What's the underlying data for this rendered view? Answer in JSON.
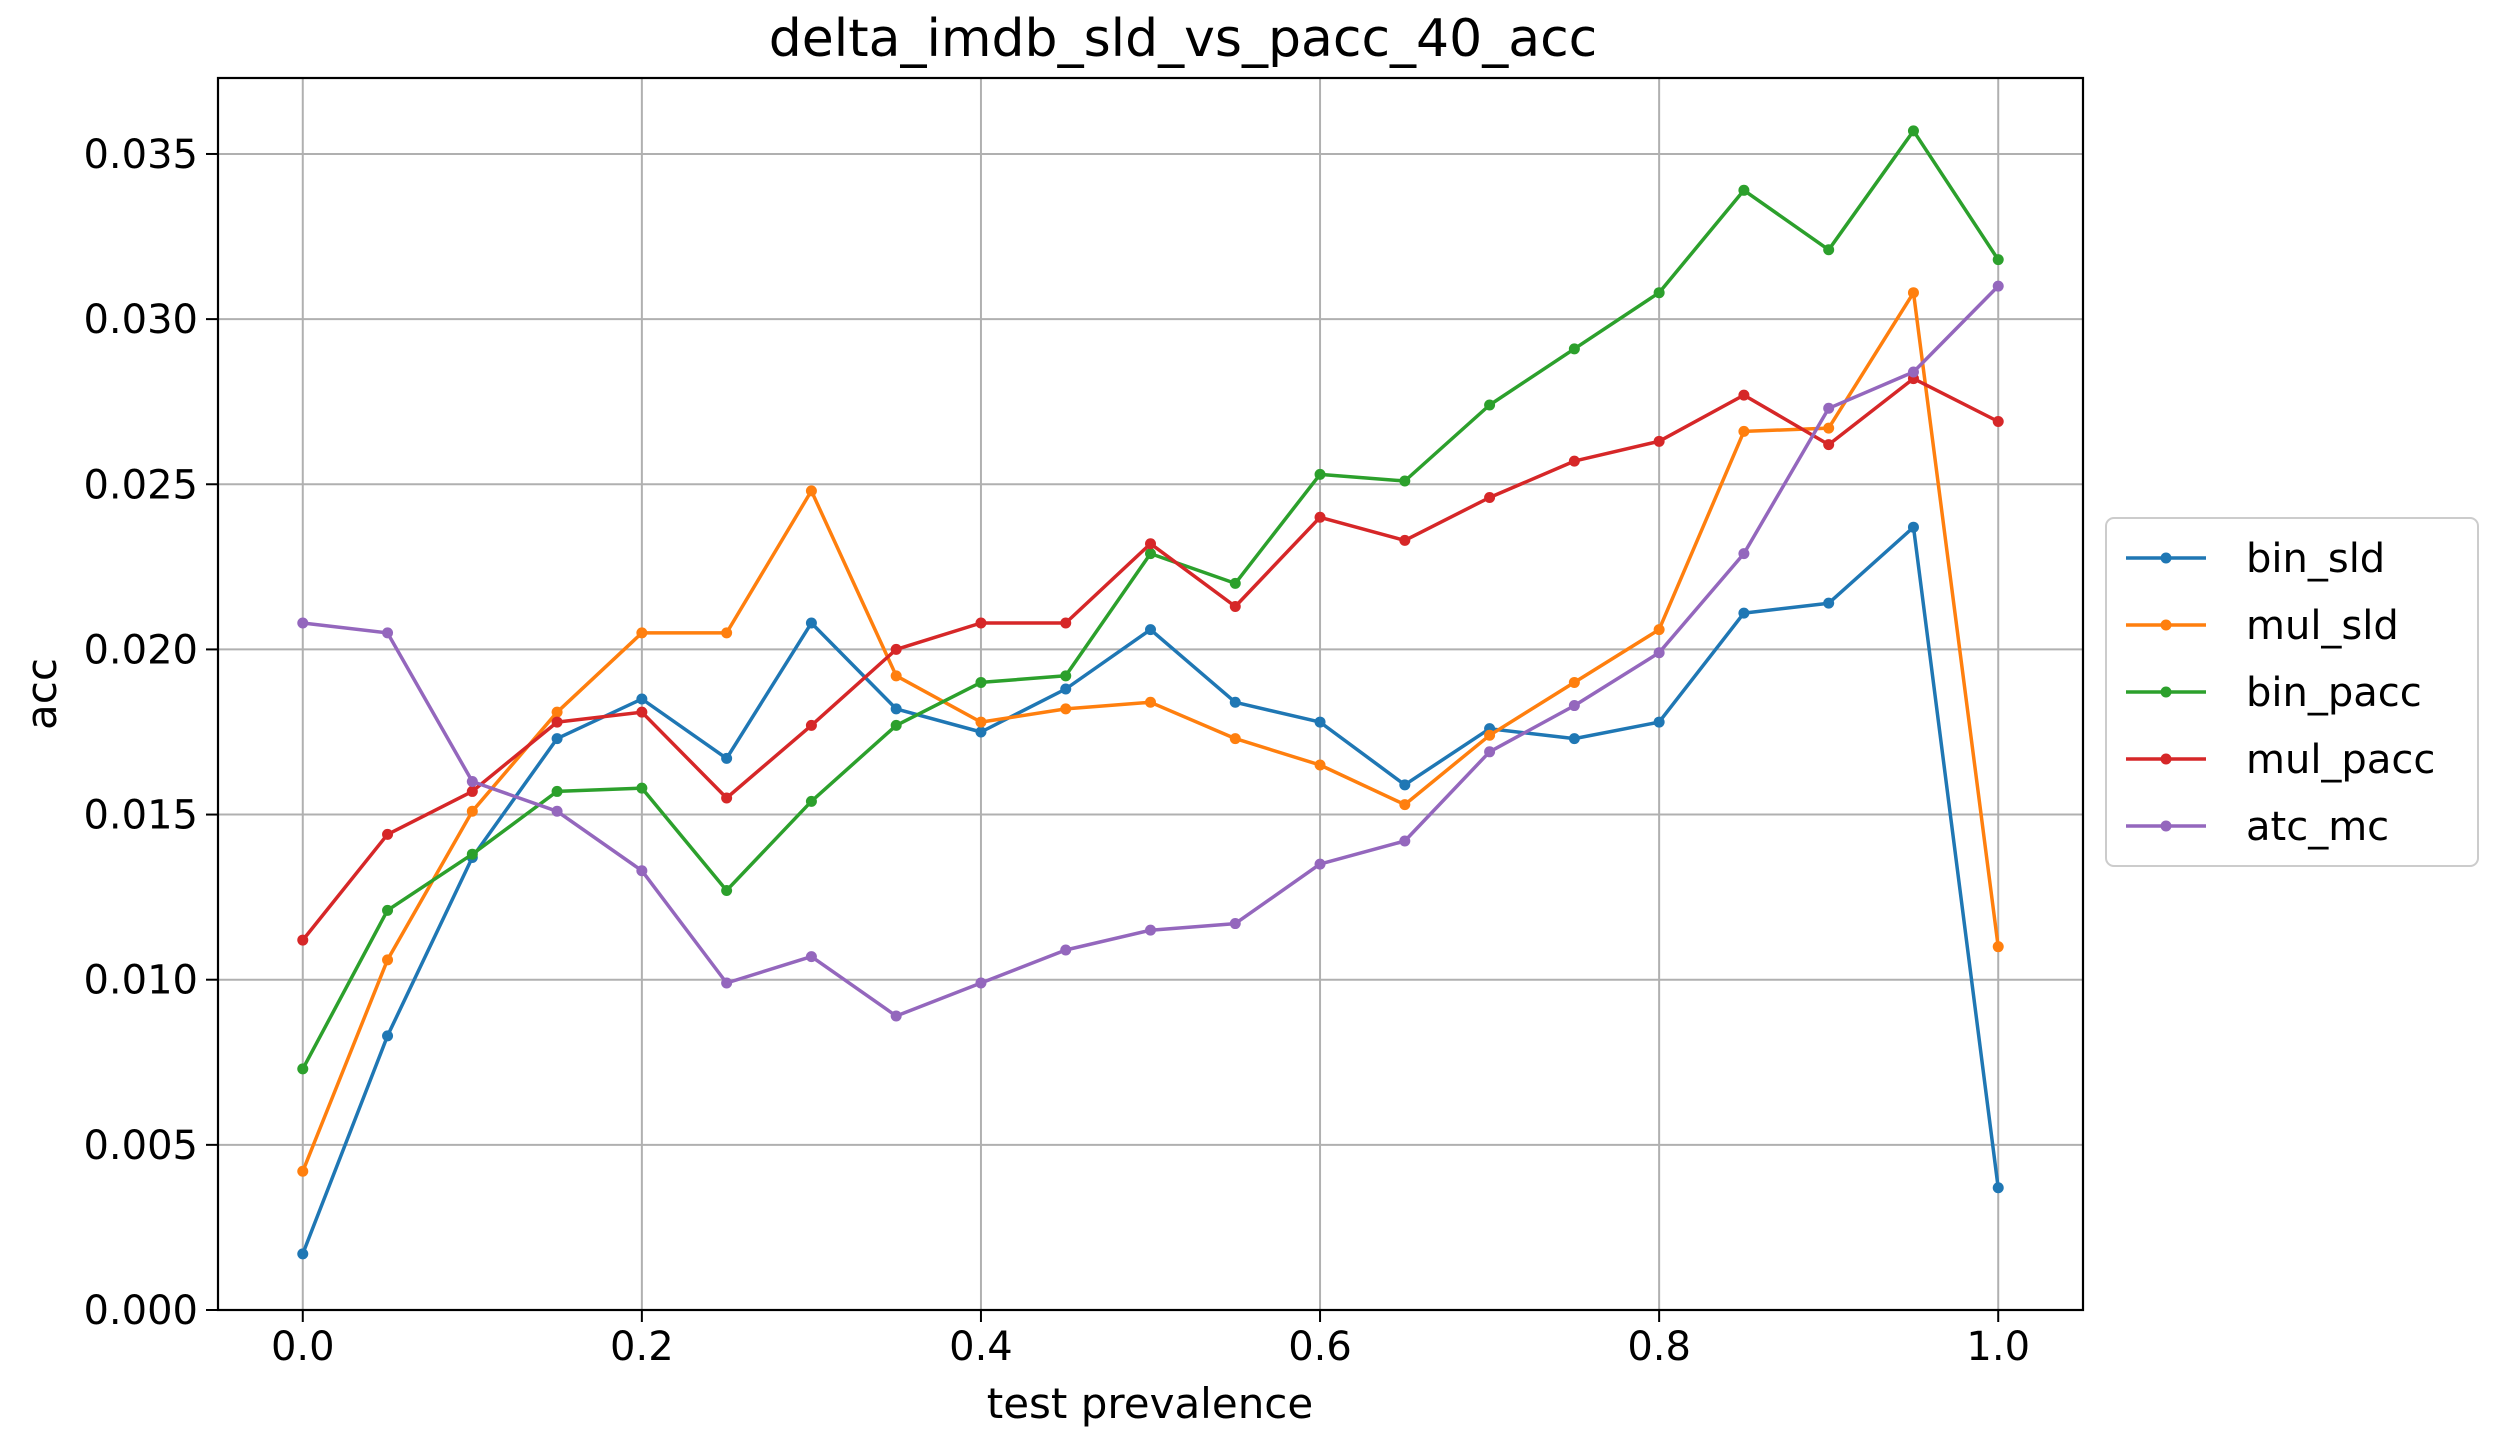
{
  "chart_data": {
    "type": "line",
    "title": "delta_imdb_sld_vs_pacc_40_acc",
    "xlabel": "test prevalence",
    "ylabel": "acc",
    "xlim": [
      -0.05,
      1.05
    ],
    "ylim": [
      0.0,
      0.0373
    ],
    "xticks": [
      0.0,
      0.2,
      0.4,
      0.6,
      0.8,
      1.0
    ],
    "xtick_labels": [
      "0.0",
      "0.2",
      "0.4",
      "0.6",
      "0.8",
      "1.0"
    ],
    "yticks": [
      0.0,
      0.005,
      0.01,
      0.015,
      0.02,
      0.025,
      0.03,
      0.035
    ],
    "ytick_labels": [
      "0.000",
      "0.005",
      "0.010",
      "0.015",
      "0.020",
      "0.025",
      "0.030",
      "0.035"
    ],
    "grid": true,
    "legend_position": "center-right outside",
    "x": [
      0.0,
      0.05,
      0.1,
      0.15,
      0.2,
      0.25,
      0.3,
      0.35,
      0.4,
      0.45,
      0.5,
      0.55,
      0.6,
      0.65,
      0.7,
      0.75,
      0.8,
      0.85,
      0.9,
      0.95,
      1.0
    ],
    "series": [
      {
        "name": "bin_sld",
        "color": "#1f77b4",
        "values": [
          0.0017,
          0.0083,
          0.0137,
          0.0173,
          0.0185,
          0.0167,
          0.0208,
          0.0182,
          0.0175,
          0.0188,
          0.0206,
          0.0184,
          0.0178,
          0.0159,
          0.0176,
          0.0173,
          0.0178,
          0.0211,
          0.0214,
          0.0237,
          0.0037
        ]
      },
      {
        "name": "mul_sld",
        "color": "#ff7f0e",
        "values": [
          0.0042,
          0.0106,
          0.0151,
          0.0181,
          0.0205,
          0.0205,
          0.0248,
          0.0192,
          0.0178,
          0.0182,
          0.0184,
          0.0173,
          0.0165,
          0.0153,
          0.0174,
          0.019,
          0.0206,
          0.0266,
          0.0267,
          0.0308,
          0.011
        ]
      },
      {
        "name": "bin_pacc",
        "color": "#2ca02c",
        "values": [
          0.0073,
          0.0121,
          0.0138,
          0.0157,
          0.0158,
          0.0127,
          0.0154,
          0.0177,
          0.019,
          0.0192,
          0.0229,
          0.022,
          0.0253,
          0.0251,
          0.0274,
          0.0291,
          0.0308,
          0.0339,
          0.0321,
          0.0357,
          0.0318
        ]
      },
      {
        "name": "mul_pacc",
        "color": "#d62728",
        "values": [
          0.0112,
          0.0144,
          0.0157,
          0.0178,
          0.0181,
          0.0155,
          0.0177,
          0.02,
          0.0208,
          0.0208,
          0.0232,
          0.0213,
          0.024,
          0.0233,
          0.0246,
          0.0257,
          0.0263,
          0.0277,
          0.0262,
          0.0282,
          0.0269
        ]
      },
      {
        "name": "atc_mc",
        "color": "#9467bd",
        "values": [
          0.0208,
          0.0205,
          0.016,
          0.0151,
          0.0133,
          0.0099,
          0.0107,
          0.0089,
          0.0099,
          0.0109,
          0.0115,
          0.0117,
          0.0135,
          0.0142,
          0.0169,
          0.0183,
          0.0199,
          0.0229,
          0.0273,
          0.0284,
          0.031
        ]
      }
    ]
  }
}
